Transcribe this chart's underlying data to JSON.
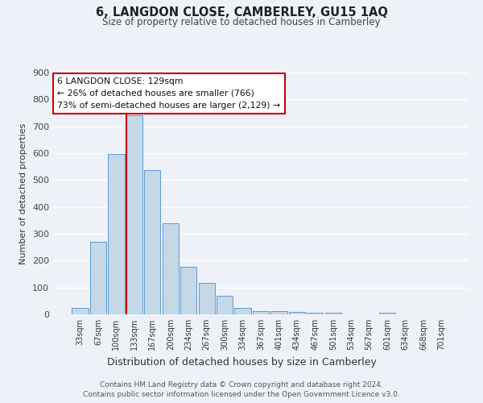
{
  "title": "6, LANGDON CLOSE, CAMBERLEY, GU15 1AQ",
  "subtitle": "Size of property relative to detached houses in Camberley",
  "xlabel": "Distribution of detached houses by size in Camberley",
  "ylabel": "Number of detached properties",
  "bar_labels": [
    "33sqm",
    "67sqm",
    "100sqm",
    "133sqm",
    "167sqm",
    "200sqm",
    "234sqm",
    "267sqm",
    "300sqm",
    "334sqm",
    "367sqm",
    "401sqm",
    "434sqm",
    "467sqm",
    "501sqm",
    "534sqm",
    "567sqm",
    "601sqm",
    "634sqm",
    "668sqm",
    "701sqm"
  ],
  "bar_values": [
    25,
    270,
    598,
    740,
    537,
    338,
    178,
    118,
    68,
    24,
    12,
    13,
    8,
    5,
    5,
    0,
    0,
    7,
    0,
    0,
    0
  ],
  "bar_color": "#c5d8e8",
  "bar_edge_color": "#5b9bd5",
  "annotation_line1": "6 LANGDON CLOSE: 129sqm",
  "annotation_line2": "← 26% of detached houses are smaller (766)",
  "annotation_line3": "73% of semi-detached houses are larger (2,129) →",
  "annotation_box_color": "#ffffff",
  "annotation_box_edge": "#cc0000",
  "vline_color": "#cc0000",
  "ylim": [
    0,
    900
  ],
  "yticks": [
    0,
    100,
    200,
    300,
    400,
    500,
    600,
    700,
    800,
    900
  ],
  "background_color": "#eef2f8",
  "grid_color": "#ffffff",
  "footer_line1": "Contains HM Land Registry data © Crown copyright and database right 2024.",
  "footer_line2": "Contains public sector information licensed under the Open Government Licence v3.0."
}
